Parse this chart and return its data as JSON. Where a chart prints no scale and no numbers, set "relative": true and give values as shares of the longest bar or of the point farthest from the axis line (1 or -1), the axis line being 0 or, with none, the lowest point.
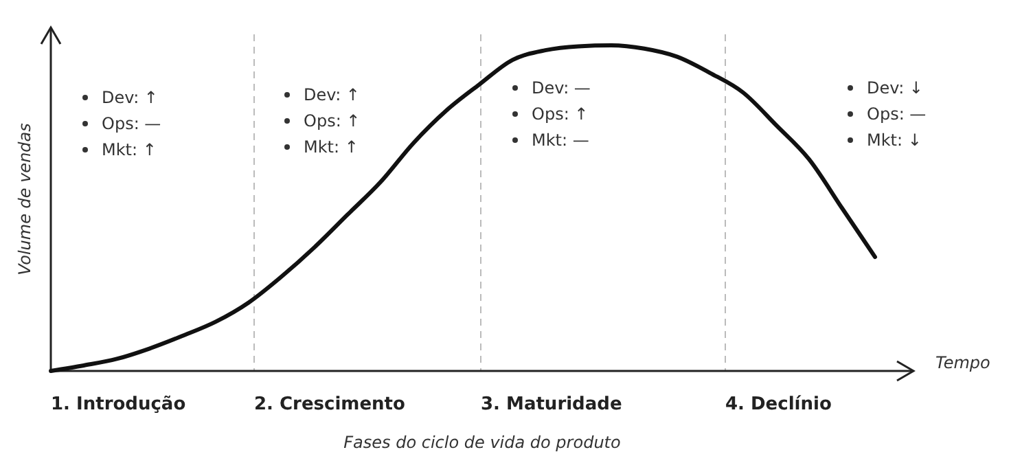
{
  "chart_data": {
    "type": "line",
    "relative": true,
    "ylabel": "Volume de vendas",
    "xlabel": "Fases do ciclo de vida do produto",
    "categories": [
      null,
      null,
      null,
      null,
      null,
      null,
      null,
      null,
      null,
      null,
      null,
      null,
      null,
      null,
      null,
      null,
      null,
      null,
      null,
      null,
      null,
      null,
      null,
      null,
      null,
      null,
      null
    ],
    "series": [
      {
        "color": "#111111",
        "values": [
          0,
          0.017,
          0.037,
          0.069,
          0.108,
          0.151,
          0.21,
          0.29,
          0.38,
          0.48,
          0.58,
          0.7,
          0.8,
          0.88,
          0.955,
          0.985,
          0.997,
          1,
          0.99,
          0.965,
          0.915,
          0.855,
          0.755,
          0.65,
          0.5,
          0.35,
          null
        ]
      }
    ],
    "annotations": [
      "1. Introdução",
      "2. Crescimento",
      "3. Maturidade",
      "4. Declínio",
      "Dev: ↑",
      "Ops: —",
      "Mkt: ↑",
      "Dev: ↑",
      "Ops: ↑",
      "Mkt: ↑",
      "Dev: —",
      "Ops: ↑",
      "Mkt: —",
      "Dev: ↓",
      "Ops: —",
      "Mkt: ↓",
      "Tempo"
    ],
    "marker": "none",
    "line_style": "solid",
    "grid": false
  }
}
